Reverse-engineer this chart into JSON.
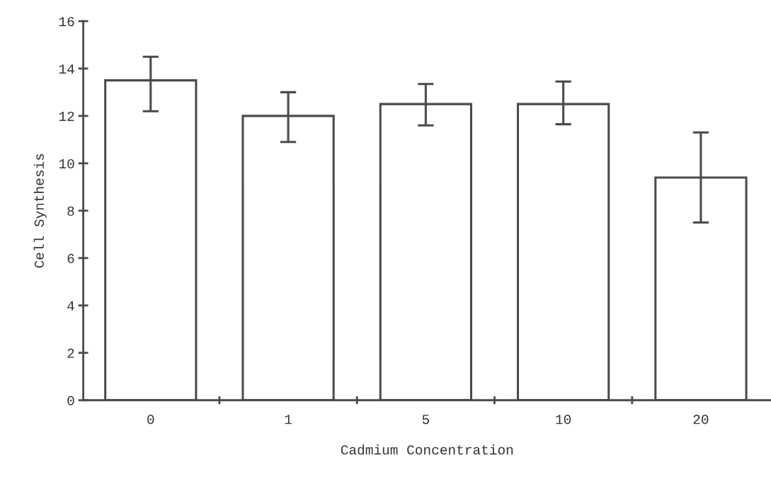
{
  "chart_data": {
    "type": "bar",
    "xlabel": "Cadmium Concentration",
    "ylabel": "Cell Synthesis",
    "categories": [
      "0",
      "1",
      "5",
      "10",
      "20"
    ],
    "values": [
      13.5,
      12.0,
      12.5,
      12.5,
      9.4
    ],
    "errors": [
      [
        12.2,
        14.5
      ],
      [
        10.9,
        13.0
      ],
      [
        11.6,
        13.35
      ],
      [
        11.65,
        13.45
      ],
      [
        7.5,
        11.3
      ]
    ],
    "color": "#ffffff",
    "ylim": [
      0,
      16
    ],
    "yticks": [
      0,
      2,
      4,
      6,
      8,
      10,
      12,
      14,
      16
    ],
    "grid": false
  }
}
